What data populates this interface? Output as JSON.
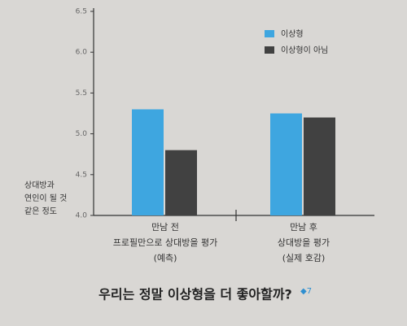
{
  "chart_data": {
    "type": "bar",
    "y_label": [
      "상대방과",
      "연인이 될 것",
      "같은 정도"
    ],
    "categories": [
      [
        "만남 전",
        "프로필만으로 상대방을 평가",
        "(예측)"
      ],
      [
        "만남 후",
        "상대방을 평가",
        "(실제 호감)"
      ]
    ],
    "series": [
      {
        "name": "이상형",
        "color": "#3ea6e0",
        "values": [
          5.3,
          5.25
        ]
      },
      {
        "name": "이상형이 아님",
        "color": "#414141",
        "values": [
          4.8,
          5.2
        ]
      }
    ],
    "ylim": [
      4.0,
      6.5
    ],
    "yticks": [
      {
        "value": 4,
        "label": "4.0"
      },
      4.5,
      {
        "value": 5,
        "label": "5.0"
      },
      5.5,
      {
        "value": 6,
        "label": "6.0"
      },
      6.5
    ],
    "legend": "upper right",
    "caption": "우리는 정말 이상형을 더 좋아할까?",
    "caption_mark": "◆7"
  }
}
